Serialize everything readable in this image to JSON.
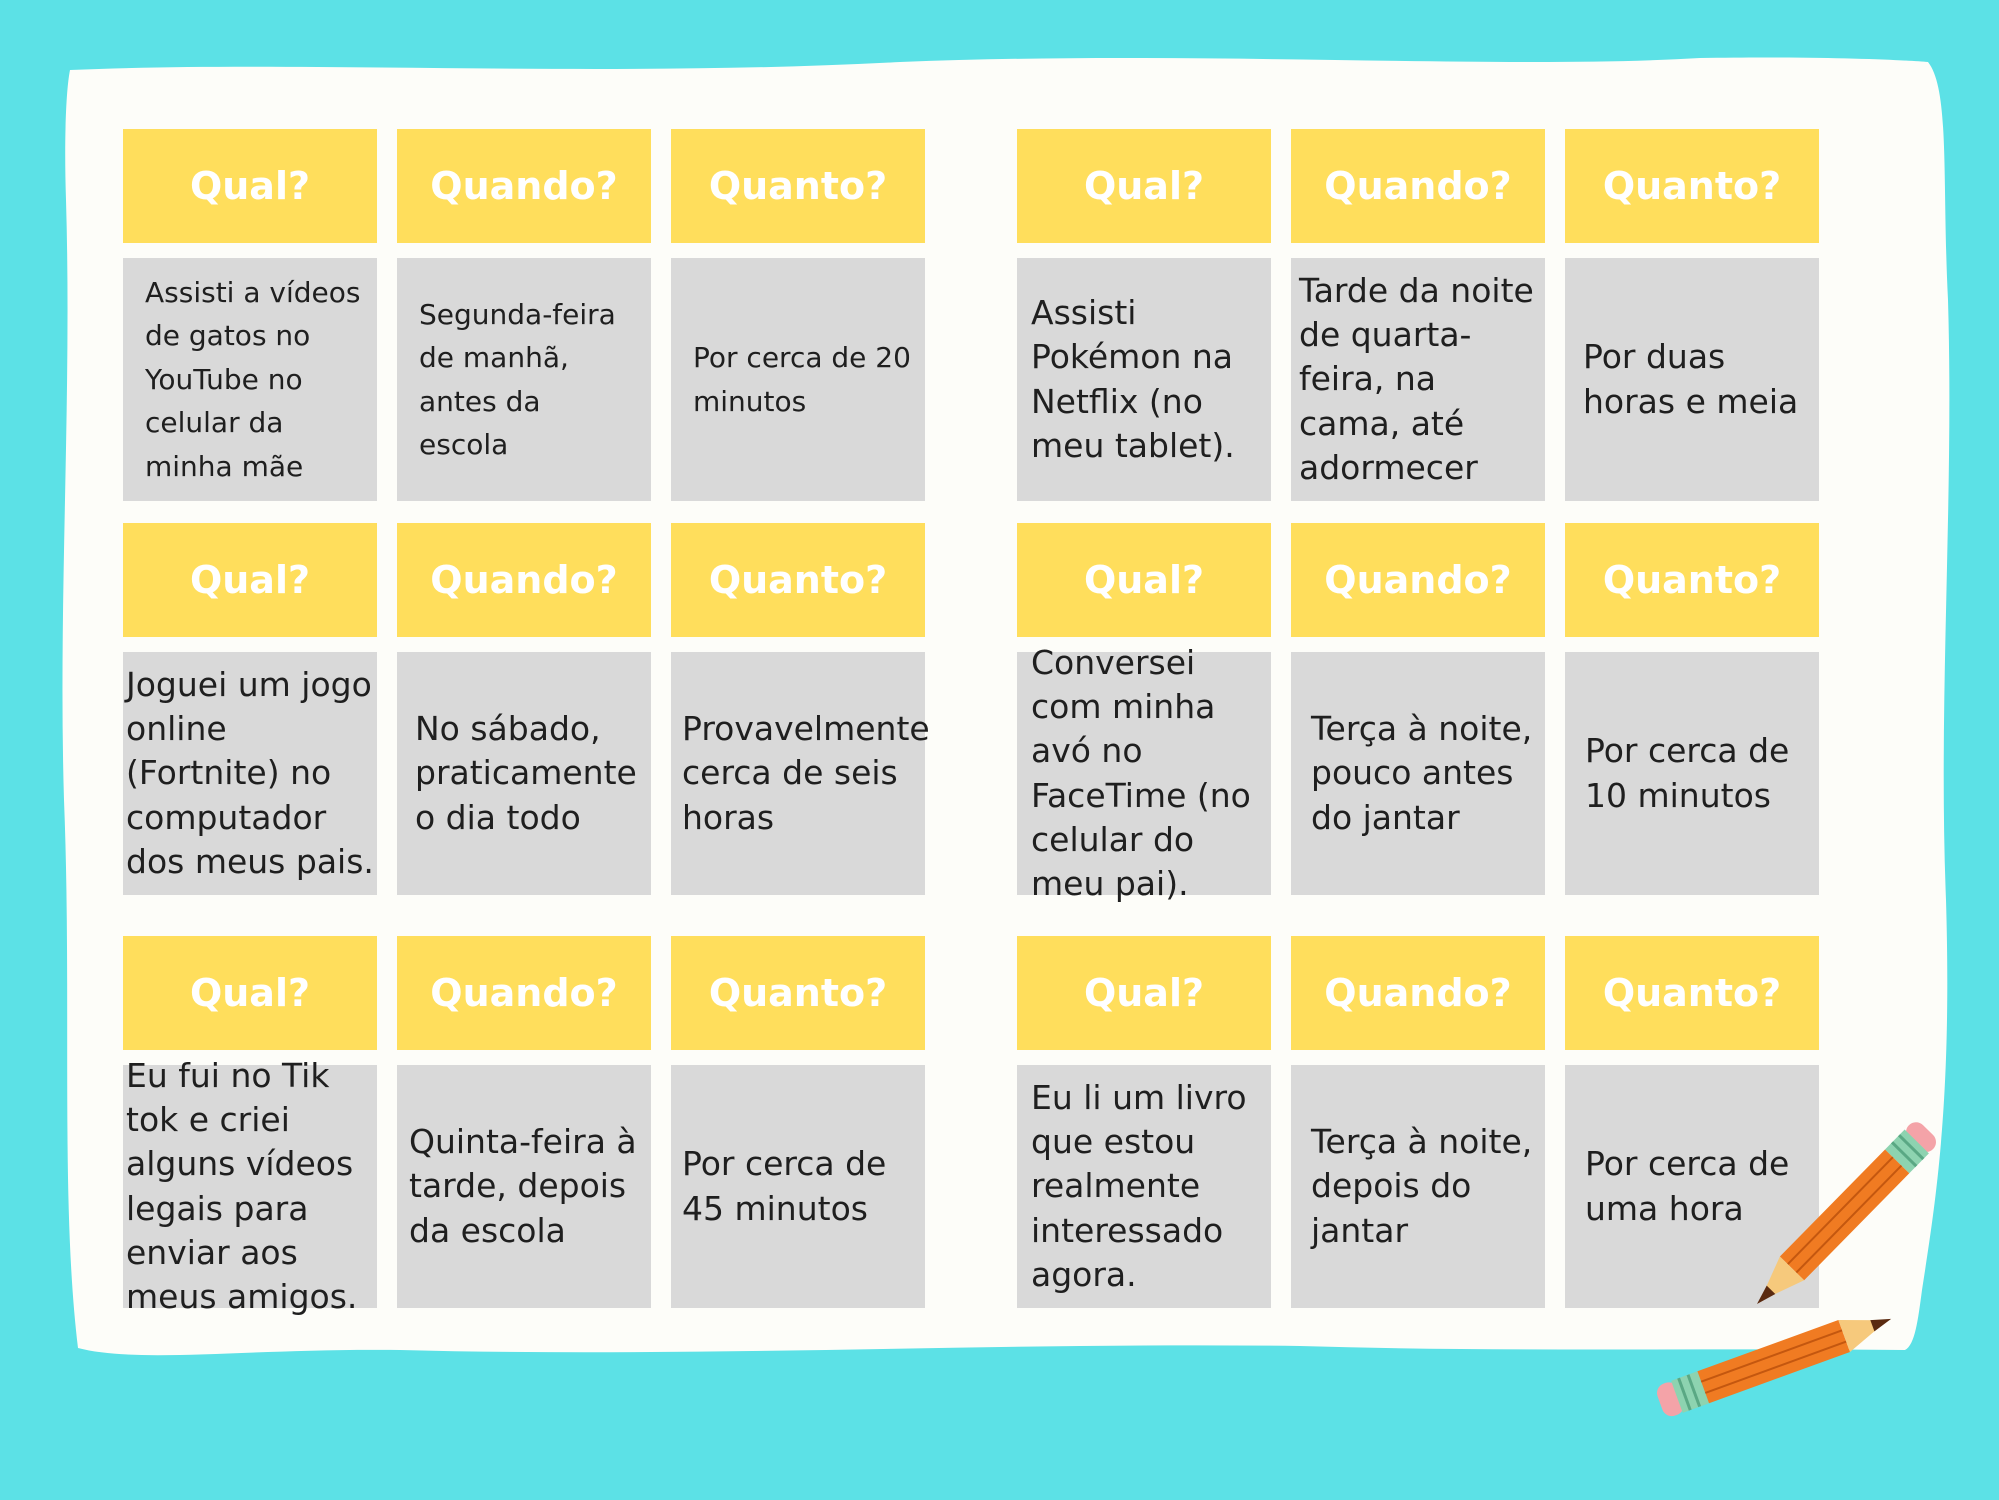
{
  "colors": {
    "background": "#5ce1e6",
    "paper": "#fdfdf9",
    "header_bg": "#ffde5c",
    "header_text": "#ffffff",
    "cell_bg": "#d9d9d9",
    "cell_text": "#1f1f1f"
  },
  "decorations": [
    "pencil-icon",
    "pencil-icon"
  ],
  "boards": [
    {
      "headers": [
        "Qual?",
        "Quando?",
        "Quanto?"
      ],
      "answers": [
        "Assisti a vídeos de gatos no YouTube no celular da minha mãe",
        "Segunda-feira de manhã, antes da escola",
        "Por cerca de 20 minutos"
      ]
    },
    {
      "headers": [
        "Qual?",
        "Quando?",
        "Quanto?"
      ],
      "answers": [
        "Assisti Pokémon na Netflix (no meu tablet).",
        "Tarde da noite de quarta-feira, na cama, até adormecer",
        "Por duas horas e meia"
      ]
    },
    {
      "headers": [
        "Qual?",
        "Quando?",
        "Quanto?"
      ],
      "answers": [
        "Joguei um jogo online (Fortnite) no computador dos meus pais.",
        "No sábado, praticamente o dia todo",
        "Provavelmente cerca de seis horas"
      ]
    },
    {
      "headers": [
        "Qual?",
        "Quando?",
        "Quanto?"
      ],
      "answers": [
        "Conversei com minha avó no FaceTime (no celular do meu pai).",
        "Terça à noite, pouco antes do jantar",
        "Por cerca de 10 minutos"
      ]
    },
    {
      "headers": [
        "Qual?",
        "Quando?",
        "Quanto?"
      ],
      "answers": [
        "Eu fui no Tik tok e criei alguns vídeos legais para enviar aos meus amigos.",
        "Quinta-feira à tarde, depois da escola",
        "Por cerca de 45 minutos"
      ]
    },
    {
      "headers": [
        "Qual?",
        "Quando?",
        "Quanto?"
      ],
      "answers": [
        "Eu li um livro que estou realmente interessado agora.",
        "Terça à noite, depois do jantar",
        "Por cerca de uma hora"
      ]
    }
  ]
}
